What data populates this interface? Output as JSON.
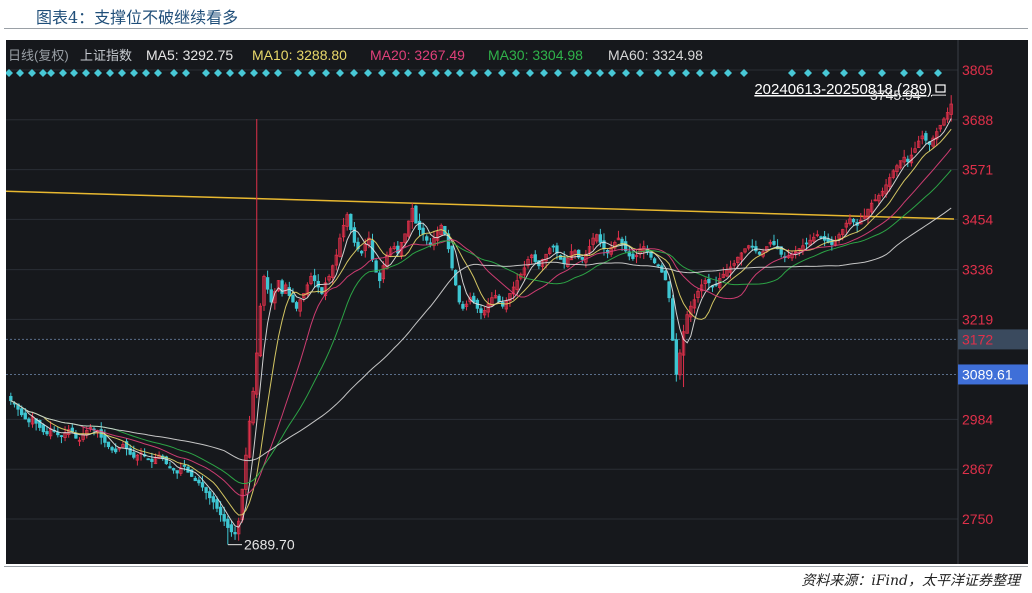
{
  "figure_title": "图表4：支撑位不破继续看多",
  "source_note": "资料来源：iFind，太平洋证券整理",
  "legend": {
    "prefix": "日线(复权)",
    "index_name": "上证指数",
    "items": [
      {
        "label": "MA5: 3292.75",
        "color": "#e6e6e6"
      },
      {
        "label": "MA10: 3288.80",
        "color": "#e8d86a"
      },
      {
        "label": "MA20: 3267.49",
        "color": "#e0407a"
      },
      {
        "label": "MA30: 3304.98",
        "color": "#2fb34a"
      },
      {
        "label": "MA60: 3324.98",
        "color": "#d8d8d8"
      }
    ]
  },
  "range_label": "20240613-20250818 (289)",
  "colors": {
    "background": "#16181c",
    "up": "#e0304a",
    "down": "#3ec6d2",
    "trendline": "#e8b830",
    "axis_text": "#e0304a"
  },
  "chart_data": {
    "type": "candlestick",
    "title": "",
    "ylim": [
      2650,
      3850
    ],
    "yticks": [
      3805,
      3688,
      3571,
      3454,
      3336,
      3219,
      2984,
      2867,
      2750
    ],
    "price_tags": [
      {
        "label": "3172",
        "value": 3172,
        "color": "#3a4a5e"
      },
      {
        "label": "3089.61",
        "value": 3089.61,
        "color": "#3f6fd8"
      }
    ],
    "annotations": [
      {
        "label": "3745.94",
        "value": 3745.94,
        "note": "period high"
      },
      {
        "label": "2689.70",
        "value": 2689.7,
        "note": "period low"
      }
    ],
    "trendline": {
      "start": 3520,
      "end": 3455
    },
    "closes_approx": [
      3028,
      3020,
      3008,
      2995,
      2985,
      2978,
      2990,
      2975,
      2965,
      2955,
      2950,
      2962,
      2958,
      2948,
      2945,
      2952,
      2960,
      2955,
      2940,
      2935,
      2948,
      2958,
      2965,
      2960,
      2955,
      2942,
      2930,
      2920,
      2912,
      2908,
      2918,
      2925,
      2915,
      2902,
      2895,
      2900,
      2905,
      2898,
      2890,
      2885,
      2895,
      2900,
      2892,
      2880,
      2870,
      2865,
      2858,
      2870,
      2875,
      2860,
      2850,
      2840,
      2835,
      2825,
      2812,
      2800,
      2790,
      2775,
      2760,
      2745,
      2730,
      2720,
      2715,
      2745,
      2820,
      2900,
      2980,
      3050,
      3140,
      3250,
      3320,
      3290,
      3260,
      3285,
      3310,
      3280,
      3300,
      3275,
      3260,
      3245,
      3265,
      3280,
      3300,
      3320,
      3310,
      3295,
      3280,
      3305,
      3320,
      3345,
      3370,
      3410,
      3440,
      3465,
      3430,
      3400,
      3385,
      3375,
      3395,
      3410,
      3360,
      3330,
      3310,
      3345,
      3370,
      3385,
      3390,
      3375,
      3400,
      3420,
      3450,
      3480,
      3445,
      3430,
      3420,
      3405,
      3395,
      3410,
      3425,
      3440,
      3420,
      3385,
      3340,
      3300,
      3260,
      3245,
      3255,
      3270,
      3260,
      3245,
      3235,
      3240,
      3255,
      3270,
      3275,
      3260,
      3250,
      3262,
      3280,
      3295,
      3310,
      3325,
      3340,
      3360,
      3370,
      3355,
      3345,
      3360,
      3372,
      3385,
      3390,
      3375,
      3360,
      3350,
      3362,
      3378,
      3380,
      3365,
      3360,
      3372,
      3390,
      3410,
      3418,
      3400,
      3385,
      3375,
      3388,
      3400,
      3410,
      3395,
      3380,
      3368,
      3362,
      3370,
      3385,
      3390,
      3378,
      3365,
      3352,
      3345,
      3330,
      3312,
      3270,
      3170,
      3090,
      3140,
      3190,
      3230,
      3250,
      3265,
      3285,
      3300,
      3310,
      3305,
      3295,
      3300,
      3315,
      3325,
      3335,
      3342,
      3350,
      3365,
      3375,
      3385,
      3392,
      3390,
      3380,
      3372,
      3378,
      3390,
      3400,
      3395,
      3385,
      3372,
      3365,
      3368,
      3372,
      3378,
      3385,
      3392,
      3398,
      3405,
      3412,
      3418,
      3412,
      3405,
      3400,
      3395,
      3405,
      3418,
      3430,
      3445,
      3455,
      3448,
      3440,
      3452,
      3462,
      3478,
      3492,
      3500,
      3510,
      3520,
      3535,
      3552,
      3568,
      3580,
      3592,
      3600,
      3590,
      3605,
      3620,
      3638,
      3650,
      3640,
      3630,
      3645,
      3660,
      3675,
      3690,
      3705,
      3725
    ]
  }
}
